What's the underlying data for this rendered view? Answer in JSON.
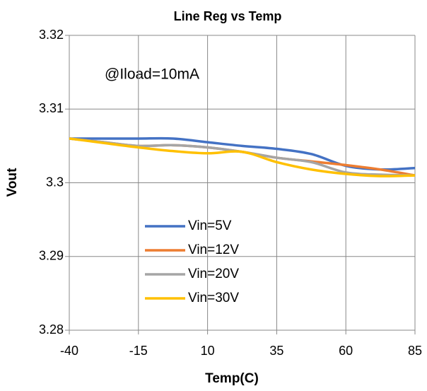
{
  "chart_data": {
    "type": "line",
    "title": "Line Reg vs Temp",
    "x_label": "Temp(C)",
    "y_label": "Vout",
    "annotation": "@Iload=10mA",
    "x": [
      -40,
      -27.5,
      -15,
      -2.5,
      10,
      22.5,
      35,
      47.5,
      60,
      72.5,
      85
    ],
    "series": [
      {
        "name": "Vin=5V",
        "color": "#4472c4",
        "values": [
          3.306,
          3.306,
          3.306,
          3.306,
          3.3055,
          3.305,
          3.3046,
          3.3039,
          3.3023,
          3.3018,
          3.302
        ]
      },
      {
        "name": "Vin=12V",
        "color": "#ed7d31",
        "values": [
          3.306,
          3.3055,
          3.305,
          3.3051,
          3.3048,
          3.3042,
          3.3034,
          3.3029,
          3.3024,
          3.3018,
          3.301
        ]
      },
      {
        "name": "Vin=20V",
        "color": "#a5a5a5",
        "values": [
          3.306,
          3.3055,
          3.305,
          3.3051,
          3.3048,
          3.3042,
          3.3034,
          3.3028,
          3.3014,
          3.3011,
          3.301
        ]
      },
      {
        "name": "Vin=30V",
        "color": "#ffc000",
        "values": [
          3.306,
          3.3054,
          3.3048,
          3.3043,
          3.304,
          3.3042,
          3.3028,
          3.3018,
          3.3012,
          3.3009,
          3.301
        ]
      }
    ],
    "xlim": [
      -40,
      85
    ],
    "xticks": [
      -40,
      -15,
      10,
      35,
      60,
      85
    ],
    "ylim": [
      3.28,
      3.32
    ],
    "yticks": [
      3.32,
      3.31,
      3.3,
      3.29,
      3.28
    ],
    "grid": true
  }
}
